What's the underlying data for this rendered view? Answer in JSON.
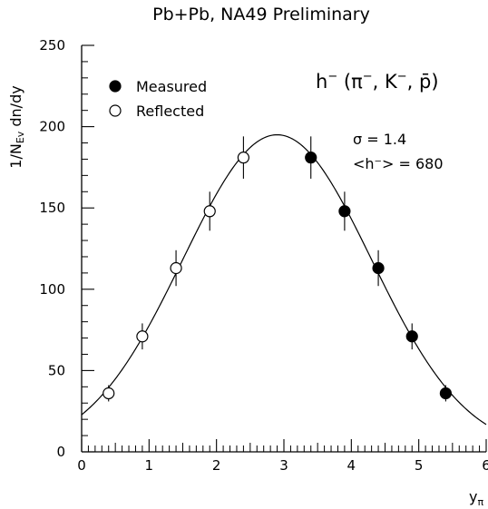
{
  "chart_data": {
    "type": "scatter",
    "title": "Pb+Pb, NA49 Preliminary",
    "xlabel": "y",
    "xlabel_sub": "π",
    "ylabel": "1/N",
    "ylabel_sub": "Ev",
    "ylabel_rest": " dn/dy",
    "xlim": [
      0,
      6
    ],
    "ylim": [
      0,
      250
    ],
    "x_ticks": [
      0,
      1,
      2,
      3,
      4,
      5,
      6
    ],
    "y_ticks": [
      0,
      50,
      100,
      150,
      200,
      250
    ],
    "grid": false,
    "legend_position": "top-left",
    "series": [
      {
        "name": "Measured",
        "marker": "filled-circle",
        "x": [
          3.4,
          3.9,
          4.4,
          4.9,
          5.4
        ],
        "y": [
          181,
          148,
          113,
          71,
          36
        ],
        "err": [
          13,
          12,
          11,
          8,
          5
        ]
      },
      {
        "name": "Reflected",
        "marker": "open-circle",
        "x": [
          2.4,
          1.9,
          1.4,
          0.9,
          0.4
        ],
        "y": [
          181,
          148,
          113,
          71,
          36
        ],
        "err": [
          13,
          12,
          11,
          8,
          5
        ]
      }
    ],
    "fit": {
      "type": "gaussian",
      "center": 2.9,
      "sigma": 1.4,
      "amplitude": 195
    },
    "annotations": {
      "particles_main": "h",
      "particles_sup": "−",
      "particles_open": " (π",
      "pi_sup": "−",
      "kaon": ", K",
      "kaon_sup": "−",
      "pbar": ", p̄)",
      "sigma_text": "σ = 1.4",
      "mean_text": "<h⁻> = 680"
    }
  }
}
